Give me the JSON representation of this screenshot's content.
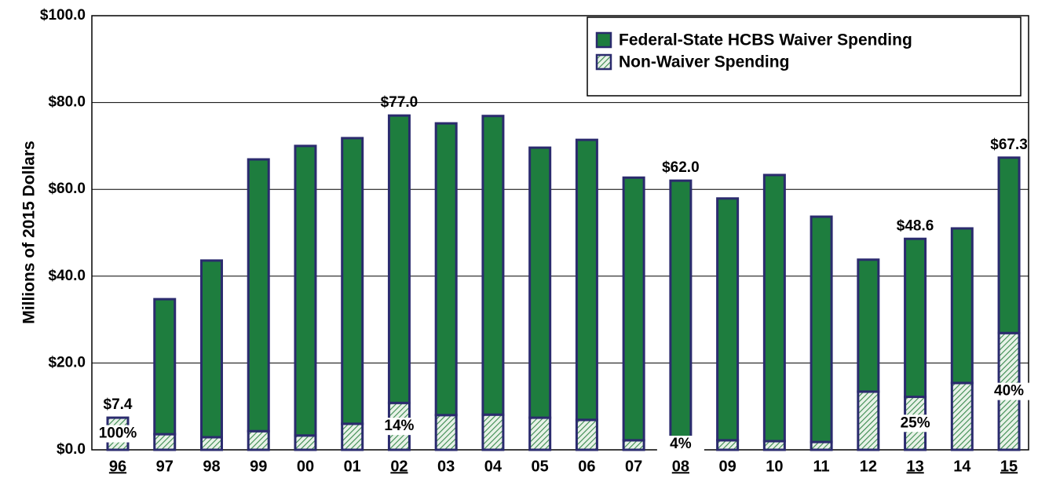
{
  "chart_data": {
    "type": "stacked_bar",
    "y_label": "Millions of 2015 Dollars",
    "categories": [
      "96",
      "97",
      "98",
      "99",
      "00",
      "01",
      "02",
      "03",
      "04",
      "05",
      "06",
      "07",
      "08",
      "09",
      "10",
      "11",
      "12",
      "13",
      "14",
      "15"
    ],
    "underlined": [
      0,
      6,
      12,
      17,
      19
    ],
    "series": [
      {
        "name": "Federal-State HCBS Waiver Spending",
        "color": "#1e7d3e",
        "pattern": "solid",
        "values": [
          0,
          31.1,
          40.7,
          62.6,
          66.7,
          65.8,
          66.2,
          67.2,
          68.8,
          62.2,
          64.5,
          60.5,
          59.5,
          55.7,
          61.3,
          51.9,
          30.4,
          36.4,
          35.6,
          40.4
        ]
      },
      {
        "name": "Non-Waiver Spending",
        "color": "#3a8a4e",
        "pattern": "hatch",
        "values": [
          7.4,
          3.6,
          2.9,
          4.3,
          3.3,
          6.0,
          10.8,
          8.0,
          8.1,
          7.4,
          6.9,
          2.2,
          2.5,
          2.2,
          2.0,
          1.8,
          13.4,
          12.2,
          15.4,
          26.9
        ]
      }
    ],
    "total_labels": [
      {
        "index": 0,
        "value": 7.4,
        "label": "$7.4"
      },
      {
        "index": 6,
        "value": 77.0,
        "label": "$77.0"
      },
      {
        "index": 12,
        "value": 62.0,
        "label": "$62.0"
      },
      {
        "index": 17,
        "value": 48.6,
        "label": "$48.6"
      },
      {
        "index": 19,
        "value": 67.3,
        "label": "$67.3"
      }
    ],
    "percent_labels": [
      {
        "index": 0,
        "value": 100,
        "label": "100%"
      },
      {
        "index": 6,
        "value": 14,
        "label": "14%"
      },
      {
        "index": 12,
        "value": 4,
        "label": "4%"
      },
      {
        "index": 17,
        "value": 25,
        "label": "25%"
      },
      {
        "index": 19,
        "value": 40,
        "label": "40%"
      }
    ],
    "ylim": [
      0,
      100
    ],
    "yticks": [
      {
        "value": 0,
        "label": "$0.0"
      },
      {
        "value": 20,
        "label": "$20.0"
      },
      {
        "value": 40,
        "label": "$40.0"
      },
      {
        "value": 60,
        "label": "$60.0"
      },
      {
        "value": 80,
        "label": "$80.0"
      },
      {
        "value": 100,
        "label": "$100.0"
      }
    ],
    "grid": true,
    "legend": "top-right"
  }
}
